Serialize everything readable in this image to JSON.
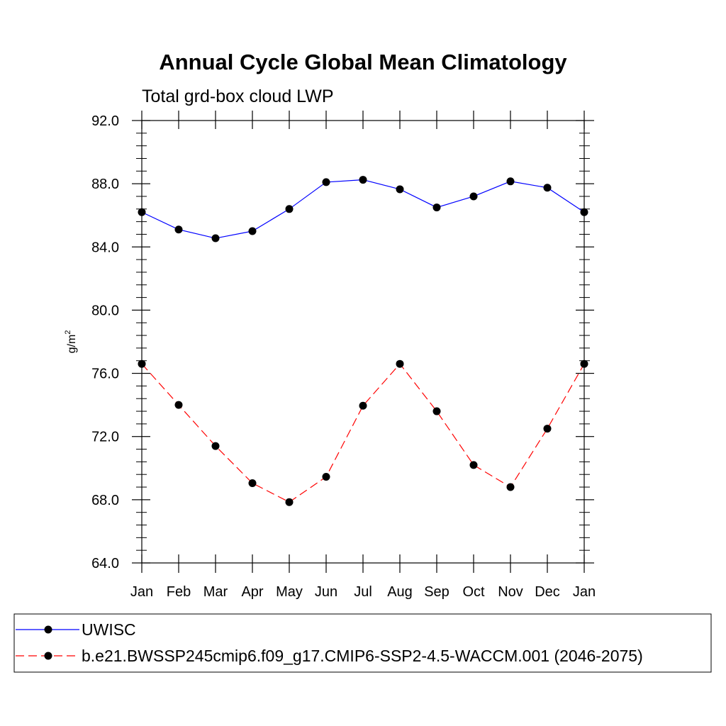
{
  "chart_data": {
    "type": "line",
    "title": "Annual Cycle Global Mean Climatology",
    "subtitle": "Total grd-box cloud LWP",
    "ylabel_base": "g/m",
    "ylabel_sup": "2",
    "xlabel": "",
    "categories": [
      "Jan",
      "Feb",
      "Mar",
      "Apr",
      "May",
      "Jun",
      "Jul",
      "Aug",
      "Sep",
      "Oct",
      "Nov",
      "Dec",
      "Jan"
    ],
    "ylim": [
      64.0,
      92.0
    ],
    "yticks": [
      "64.0",
      "68.0",
      "72.0",
      "76.0",
      "80.0",
      "84.0",
      "88.0",
      "92.0"
    ],
    "series": [
      {
        "name": "UWISC",
        "color": "#0000ff",
        "line_style": "solid",
        "marker": "filled-circle",
        "values": [
          86.2,
          85.1,
          84.55,
          85.0,
          86.4,
          88.1,
          88.25,
          87.65,
          86.5,
          87.2,
          88.15,
          87.75,
          86.2
        ]
      },
      {
        "name": "b.e21.BWSSP245cmip6.f09_g17.CMIP6-SSP2-4.5-WACCM.001 (2046-2075)",
        "color": "#ff0000",
        "line_style": "dashed",
        "marker": "filled-circle",
        "values": [
          76.6,
          74.0,
          71.4,
          69.05,
          67.85,
          69.45,
          73.95,
          76.6,
          73.6,
          70.2,
          68.8,
          72.5,
          76.6
        ]
      }
    ],
    "legend_position": "bottom",
    "grid": false
  }
}
